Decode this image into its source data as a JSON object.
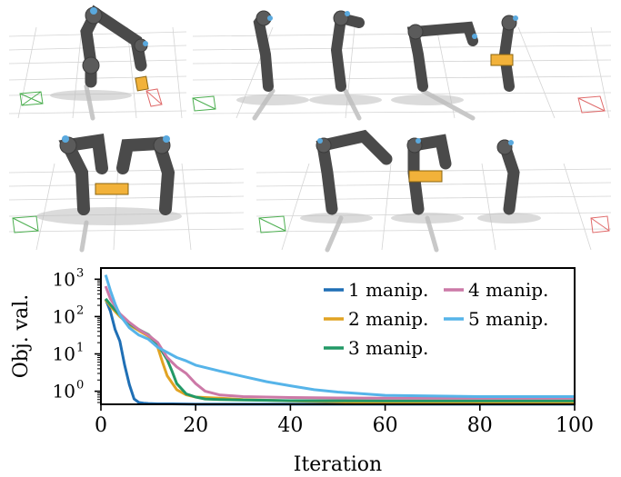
{
  "chart_data": {
    "type": "line",
    "xlabel": "Iteration",
    "ylabel": "Obj. val.",
    "xlim": [
      0,
      100
    ],
    "ylim_log10": [
      -0.35,
      3.3
    ],
    "y_scale": "log",
    "xticks": [
      0,
      20,
      40,
      60,
      80,
      100
    ],
    "xtick_labels": [
      "0",
      "20",
      "40",
      "60",
      "80",
      "100"
    ],
    "yticks": [
      1,
      10,
      100,
      1000
    ],
    "ytick_labels_base": [
      "10",
      "10",
      "10",
      "10"
    ],
    "ytick_labels_exp": [
      "0",
      "1",
      "2",
      "3"
    ],
    "grid": false,
    "legend_placement": "top-right",
    "series": [
      {
        "name": "1 manip.",
        "color": "#1f6fb5",
        "x": [
          1,
          2,
          3,
          4,
          5,
          6,
          7,
          8,
          9,
          10,
          12,
          15,
          20,
          30,
          40,
          60,
          80,
          100
        ],
        "y": [
          290,
          140,
          45,
          22,
          5,
          1.5,
          0.62,
          0.5,
          0.48,
          0.47,
          0.46,
          0.46,
          0.45,
          0.45,
          0.45,
          0.45,
          0.45,
          0.45
        ]
      },
      {
        "name": "2 manip.",
        "color": "#e1a323",
        "x": [
          1,
          2,
          4,
          6,
          8,
          10,
          12,
          13,
          14,
          16,
          18,
          20,
          25,
          30,
          40,
          50,
          60,
          80,
          100
        ],
        "y": [
          280,
          190,
          100,
          60,
          42,
          30,
          15,
          6,
          2.6,
          1.1,
          0.8,
          0.7,
          0.65,
          0.6,
          0.55,
          0.52,
          0.5,
          0.5,
          0.5
        ]
      },
      {
        "name": "3 manip.",
        "color": "#229966",
        "x": [
          1,
          2,
          4,
          6,
          8,
          10,
          12,
          14,
          15,
          16,
          18,
          20,
          22,
          25,
          30,
          40,
          60,
          80,
          100
        ],
        "y": [
          300,
          210,
          110,
          65,
          45,
          33,
          18,
          7,
          3.5,
          1.6,
          0.85,
          0.7,
          0.62,
          0.6,
          0.58,
          0.56,
          0.55,
          0.55,
          0.55
        ]
      },
      {
        "name": "4 manip.",
        "color": "#cc79a7",
        "x": [
          1,
          2,
          4,
          6,
          8,
          10,
          12,
          14,
          16,
          18,
          20,
          22,
          25,
          30,
          40,
          50,
          60,
          80,
          100
        ],
        "y": [
          650,
          300,
          120,
          70,
          45,
          32,
          20,
          8,
          4.5,
          3,
          1.6,
          1.0,
          0.8,
          0.72,
          0.68,
          0.66,
          0.65,
          0.65,
          0.65
        ]
      },
      {
        "name": "5 manip.",
        "color": "#56b4e9",
        "x": [
          1,
          2,
          3,
          4,
          6,
          8,
          10,
          12,
          14,
          16,
          18,
          20,
          25,
          30,
          35,
          40,
          45,
          50,
          60,
          80,
          100
        ],
        "y": [
          1300,
          500,
          220,
          110,
          50,
          32,
          25,
          15,
          11,
          8,
          6.5,
          5,
          3.5,
          2.5,
          1.8,
          1.4,
          1.1,
          0.95,
          0.78,
          0.72,
          0.72
        ]
      }
    ]
  }
}
